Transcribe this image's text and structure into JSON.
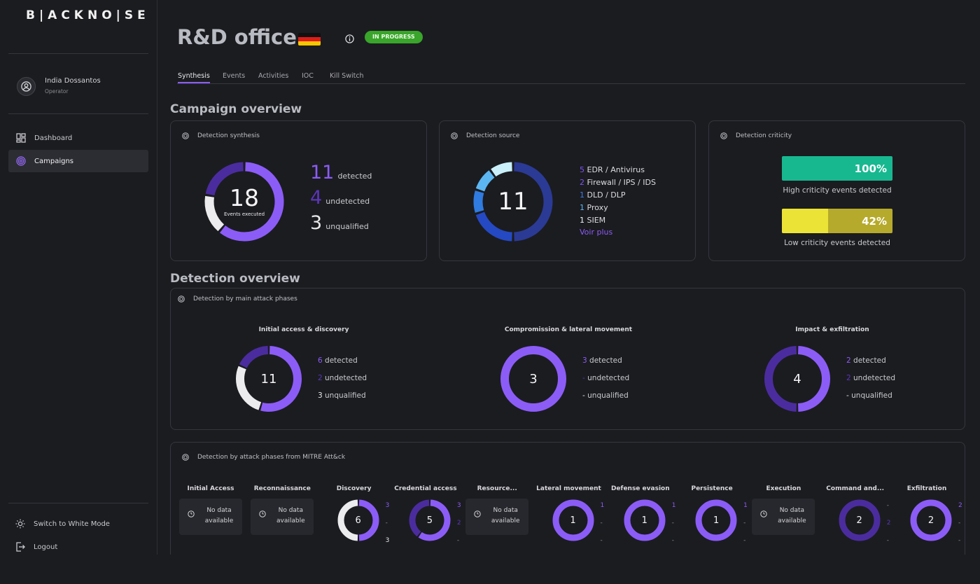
{
  "brand": "B|ACKNO|SE",
  "user": {
    "name": "India Dossantos",
    "role": "Operator"
  },
  "nav": [
    {
      "label": "Dashboard",
      "icon": "dashboard-icon",
      "active": false
    },
    {
      "label": "Campaigns",
      "icon": "fingerprint-icon",
      "active": true
    }
  ],
  "bottom": {
    "mode_label": "Switch to White Mode",
    "logout_label": "Logout"
  },
  "header": {
    "title": "R&D office",
    "flag": "germany-flag",
    "status": "IN PROGRESS",
    "status_color": "#39a52a"
  },
  "tabs": [
    "Synthesis",
    "Events",
    "Activities",
    "IOC",
    "Kill Switch"
  ],
  "active_tab": "Synthesis",
  "sections": {
    "campaign": "Campaign overview",
    "detection": "Detection overview"
  },
  "detection_synthesis": {
    "title": "Detection synthesis",
    "total": "18",
    "total_label": "Events executed",
    "detected": {
      "value": "11",
      "label": "detected",
      "color": "#8c5cf7"
    },
    "undetected": {
      "value": "4",
      "label": "undetected",
      "color": "#5b36b8"
    },
    "unqualified": {
      "value": "3",
      "label": "unqualified",
      "color": "#e8e8ea"
    }
  },
  "detection_source": {
    "title": "Detection source",
    "total": "11",
    "sources": [
      {
        "count": "5",
        "name": "EDR / Antivirus",
        "color": "#2b3a94"
      },
      {
        "count": "2",
        "name": "Firewall / IPS / IDS",
        "color": "#2549c2"
      },
      {
        "count": "1",
        "name": "DLD / DLP",
        "color": "#2f7be0"
      },
      {
        "count": "1",
        "name": "Proxy",
        "color": "#5cb6f2"
      },
      {
        "count": "1",
        "name": "SIEM",
        "color": "#c9f0fb"
      }
    ],
    "more_label": "Voir plus"
  },
  "detection_criticity": {
    "title": "Detection criticity",
    "high": {
      "percent": 100,
      "label": "100%",
      "caption": "High criticity events detected",
      "color": "#17b890"
    },
    "low": {
      "percent": 42,
      "label": "42%",
      "caption": "Low criticity events detected",
      "color_fill": "#ece337",
      "color_rest": "#b6aa2c"
    }
  },
  "main_phases": {
    "title": "Detection by main attack phases",
    "phases": [
      {
        "title": "Initial access & discovery",
        "total": "11",
        "detected": "6",
        "undetected": "2",
        "unqualified": "3",
        "d": 6,
        "u": 2,
        "q": 3
      },
      {
        "title": "Compromission & lateral movement",
        "total": "3",
        "detected": "3",
        "undetected": "-",
        "unqualified": "-",
        "d": 3,
        "u": 0,
        "q": 0
      },
      {
        "title": "Impact & exfiltration",
        "total": "4",
        "detected": "2",
        "undetected": "2",
        "unqualified": "-",
        "d": 2,
        "u": 2,
        "q": 0
      }
    ],
    "labels": {
      "detected": "detected",
      "undetected": "undetected",
      "unqualified": "unqualified"
    }
  },
  "mitre": {
    "title": "Detection by attack phases from MITRE Att&ck",
    "no_data_label": "No data available",
    "columns": [
      {
        "title": "Initial Access",
        "nodata": true
      },
      {
        "title": "Reconnaissance",
        "nodata": true
      },
      {
        "title": "Discovery",
        "nodata": false,
        "total": "6",
        "detected": "3",
        "undetected": "-",
        "unqualified": "3",
        "d": 3,
        "u": 0,
        "q": 3
      },
      {
        "title": "Credential access",
        "nodata": false,
        "total": "5",
        "detected": "3",
        "undetected": "2",
        "unqualified": "-",
        "d": 3,
        "u": 2,
        "q": 0
      },
      {
        "title": "Resource...",
        "nodata": true
      },
      {
        "title": "Lateral movement",
        "nodata": false,
        "total": "1",
        "detected": "1",
        "undetected": "-",
        "unqualified": "-",
        "d": 1,
        "u": 0,
        "q": 0
      },
      {
        "title": "Defense evasion",
        "nodata": false,
        "total": "1",
        "detected": "1",
        "undetected": "-",
        "unqualified": "-",
        "d": 1,
        "u": 0,
        "q": 0
      },
      {
        "title": "Persistence",
        "nodata": false,
        "total": "1",
        "detected": "1",
        "undetected": "-",
        "unqualified": "-",
        "d": 1,
        "u": 0,
        "q": 0
      },
      {
        "title": "Execution",
        "nodata": true
      },
      {
        "title": "Command and...",
        "nodata": false,
        "total": "2",
        "detected": "-",
        "undetected": "2",
        "unqualified": "-",
        "d": 0,
        "u": 2,
        "q": 0
      },
      {
        "title": "Exfiltration",
        "nodata": false,
        "total": "2",
        "detected": "2",
        "undetected": "-",
        "unqualified": "-",
        "d": 2,
        "u": 0,
        "q": 0
      }
    ]
  },
  "colors": {
    "detected": "#8c5cf7",
    "undetected": "#4b2c9e",
    "unqualified": "#ececee",
    "accent": "#8a5cf6"
  }
}
